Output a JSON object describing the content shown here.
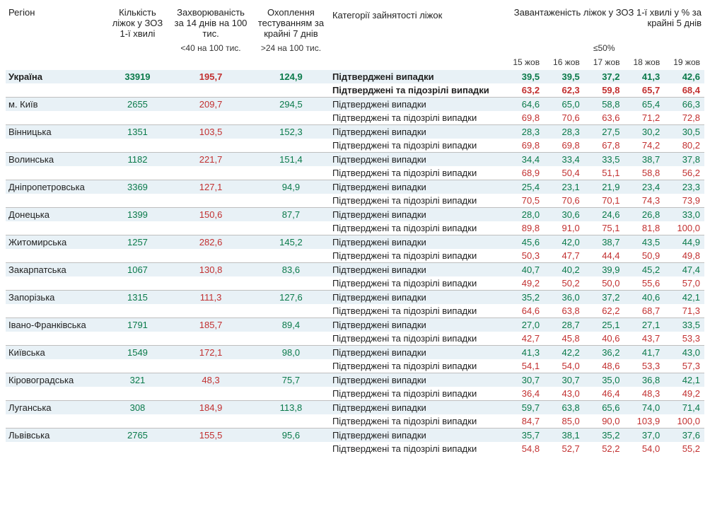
{
  "headers": {
    "region": "Регіон",
    "beds": "Кількість ліжок у ЗОЗ 1-ї хвилі",
    "incidence": "Захворюваність за 14 днів на 100 тис.",
    "testing": "Охоплення тестуванням за крайні 7 днів",
    "category": "Категорії зайнятості ліжок",
    "load_title": "Завантаженість ліжок у ЗОЗ 1-ї хвилі у % за крайні 5 днів",
    "sub_incidence": "<40 на 100 тис.",
    "sub_testing": ">24 на 100 тис.",
    "sub_load": "≤50%",
    "dates": [
      "15 жов",
      "16 жов",
      "17 жов",
      "18 жов",
      "19 жов"
    ]
  },
  "cat_confirmed": "Підтверджені випадки",
  "cat_suspected": "Підтверджені та підозрілі випадки",
  "colors": {
    "green": "#0a7a4a",
    "red": "#c23030",
    "band_light": "#e8f1f6",
    "band_white": "#ffffff",
    "border": "#bfbfbf"
  },
  "rows": [
    {
      "region": "Україна",
      "bold": true,
      "beds": "33919",
      "inc": "195,7",
      "test": "124,9",
      "conf": [
        "39,5",
        "39,5",
        "37,2",
        "41,3",
        "42,6"
      ],
      "susp": [
        "63,2",
        "62,3",
        "59,8",
        "65,7",
        "68,4"
      ]
    },
    {
      "region": "м. Київ",
      "beds": "2655",
      "inc": "209,7",
      "test": "294,5",
      "conf": [
        "64,6",
        "65,0",
        "58,8",
        "65,4",
        "66,3"
      ],
      "susp": [
        "69,8",
        "70,6",
        "63,6",
        "71,2",
        "72,8"
      ]
    },
    {
      "region": "Вінницька",
      "beds": "1351",
      "inc": "103,5",
      "test": "152,3",
      "conf": [
        "28,3",
        "28,3",
        "27,5",
        "30,2",
        "30,5"
      ],
      "susp": [
        "69,8",
        "69,8",
        "67,8",
        "74,2",
        "80,2"
      ]
    },
    {
      "region": "Волинська",
      "beds": "1182",
      "inc": "221,7",
      "test": "151,4",
      "conf": [
        "34,4",
        "33,4",
        "33,5",
        "38,7",
        "37,8"
      ],
      "susp": [
        "68,9",
        "50,4",
        "51,1",
        "58,8",
        "56,2"
      ]
    },
    {
      "region": "Дніпропетровська",
      "beds": "3369",
      "inc": "127,1",
      "test": "94,9",
      "conf": [
        "25,4",
        "23,1",
        "21,9",
        "23,4",
        "23,3"
      ],
      "susp": [
        "70,5",
        "70,6",
        "70,1",
        "74,3",
        "73,9"
      ]
    },
    {
      "region": "Донецька",
      "beds": "1399",
      "inc": "150,6",
      "test": "87,7",
      "conf": [
        "28,0",
        "30,6",
        "24,6",
        "26,8",
        "33,0"
      ],
      "susp": [
        "89,8",
        "91,0",
        "75,1",
        "81,8",
        "100,0"
      ]
    },
    {
      "region": "Житомирська",
      "beds": "1257",
      "inc": "282,6",
      "test": "145,2",
      "conf": [
        "45,6",
        "42,0",
        "38,7",
        "43,5",
        "44,9"
      ],
      "susp": [
        "50,3",
        "47,7",
        "44,4",
        "50,9",
        "49,8"
      ]
    },
    {
      "region": "Закарпатська",
      "beds": "1067",
      "inc": "130,8",
      "test": "83,6",
      "conf": [
        "40,7",
        "40,2",
        "39,9",
        "45,2",
        "47,4"
      ],
      "susp": [
        "49,2",
        "50,2",
        "50,0",
        "55,6",
        "57,0"
      ]
    },
    {
      "region": "Запорізька",
      "beds": "1315",
      "inc": "111,3",
      "test": "127,6",
      "conf": [
        "35,2",
        "36,0",
        "37,2",
        "40,6",
        "42,1"
      ],
      "susp": [
        "64,6",
        "63,8",
        "62,2",
        "68,7",
        "71,3"
      ]
    },
    {
      "region": "Івано-Франківська",
      "beds": "1791",
      "inc": "185,7",
      "test": "89,4",
      "conf": [
        "27,0",
        "28,7",
        "25,1",
        "27,1",
        "33,5"
      ],
      "susp": [
        "42,7",
        "45,8",
        "40,6",
        "43,7",
        "53,3"
      ]
    },
    {
      "region": "Київська",
      "beds": "1549",
      "inc": "172,1",
      "test": "98,0",
      "conf": [
        "41,3",
        "42,2",
        "36,2",
        "41,7",
        "43,0"
      ],
      "susp": [
        "54,1",
        "54,0",
        "48,6",
        "53,3",
        "57,3"
      ]
    },
    {
      "region": "Кіровоградська",
      "beds": "321",
      "inc": "48,3",
      "test": "75,7",
      "conf": [
        "30,7",
        "30,7",
        "35,0",
        "36,8",
        "42,1"
      ],
      "susp": [
        "36,4",
        "43,0",
        "46,4",
        "48,3",
        "49,2"
      ]
    },
    {
      "region": "Луганська",
      "beds": "308",
      "inc": "184,9",
      "test": "113,8",
      "conf": [
        "59,7",
        "63,8",
        "65,6",
        "74,0",
        "71,4"
      ],
      "susp": [
        "84,7",
        "85,0",
        "90,0",
        "103,9",
        "100,0"
      ]
    },
    {
      "region": "Львівська",
      "beds": "2765",
      "inc": "155,5",
      "test": "95,6",
      "conf": [
        "35,7",
        "38,1",
        "35,2",
        "37,0",
        "37,6"
      ],
      "susp": [
        "54,8",
        "52,7",
        "52,2",
        "54,0",
        "55,2"
      ]
    }
  ]
}
